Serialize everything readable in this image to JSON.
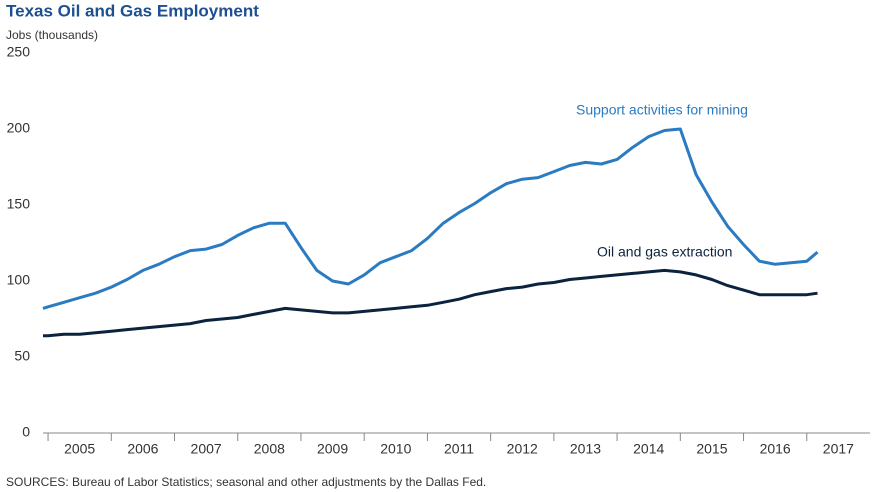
{
  "chart_data": {
    "type": "line",
    "title": "Texas Oil and Gas Employment",
    "y_axis_label": "Jobs (thousands)",
    "source": "SOURCES: Bureau of Labor Statistics; seasonal and other adjustments by the Dallas Fed.",
    "x": [
      2004.92,
      2005,
      2005.25,
      2005.5,
      2005.75,
      2006,
      2006.25,
      2006.5,
      2006.75,
      2007,
      2007.25,
      2007.5,
      2007.75,
      2008,
      2008.25,
      2008.5,
      2008.75,
      2009,
      2009.25,
      2009.5,
      2009.75,
      2010,
      2010.25,
      2010.5,
      2010.75,
      2011,
      2011.25,
      2011.5,
      2011.75,
      2012,
      2012.25,
      2012.5,
      2012.75,
      2013,
      2013.25,
      2013.5,
      2013.75,
      2014,
      2014.25,
      2014.5,
      2014.75,
      2015,
      2015.25,
      2015.5,
      2015.75,
      2016,
      2016.25,
      2016.5,
      2016.75,
      2017,
      2017.17
    ],
    "series": [
      {
        "name": "Support activities for mining",
        "color": "#2a7bc1",
        "values": [
          82,
          83,
          86,
          89,
          92,
          96,
          101,
          107,
          111,
          116,
          120,
          121,
          124,
          130,
          135,
          138,
          138,
          122,
          107,
          100,
          98,
          104,
          112,
          116,
          120,
          128,
          138,
          145,
          151,
          158,
          164,
          167,
          168,
          172,
          176,
          178,
          177,
          180,
          188,
          195,
          199,
          200,
          170,
          152,
          136,
          124,
          113,
          111,
          112,
          113,
          119
        ]
      },
      {
        "name": "Oil and gas extraction",
        "color": "#0c2340",
        "values": [
          64,
          64,
          65,
          65,
          66,
          67,
          68,
          69,
          70,
          71,
          72,
          74,
          75,
          76,
          78,
          80,
          82,
          81,
          80,
          79,
          79,
          80,
          81,
          82,
          83,
          84,
          86,
          88,
          91,
          93,
          95,
          96,
          98,
          99,
          101,
          102,
          103,
          104,
          105,
          106,
          107,
          106,
          104,
          101,
          97,
          94,
          91,
          91,
          91,
          91,
          92
        ]
      }
    ],
    "xlim": [
      2004.92,
      2018
    ],
    "xticks": [
      2005,
      2006,
      2007,
      2008,
      2009,
      2010,
      2011,
      2012,
      2013,
      2014,
      2015,
      2016,
      2017
    ],
    "ylim": [
      0,
      250
    ],
    "yticks": [
      0,
      50,
      100,
      150,
      200,
      250
    ],
    "grid": false
  }
}
